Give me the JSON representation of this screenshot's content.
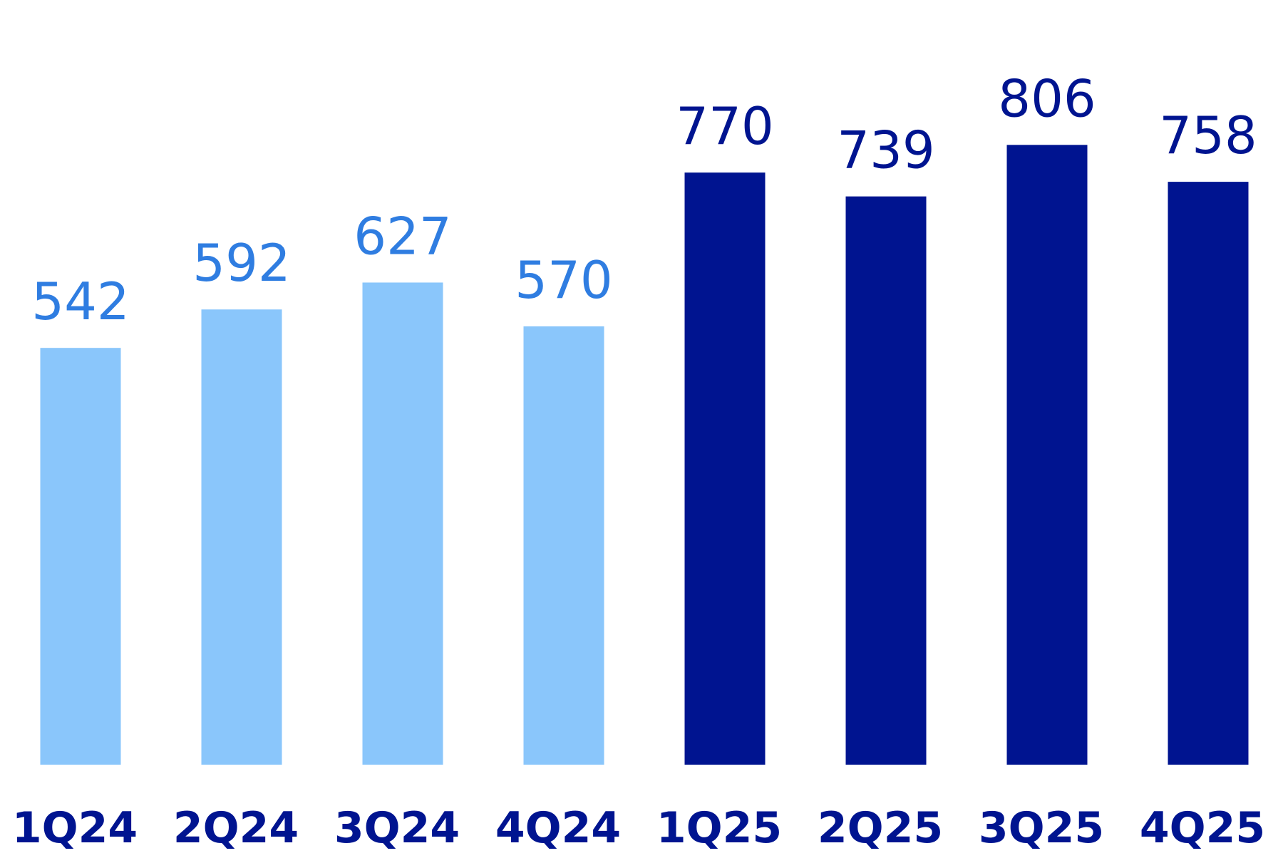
{
  "chart_data": {
    "type": "bar",
    "categories": [
      "1Q24",
      "2Q24",
      "3Q24",
      "4Q24",
      "1Q25",
      "2Q25",
      "3Q25",
      "4Q25"
    ],
    "values": [
      542,
      592,
      627,
      570,
      770,
      739,
      806,
      758
    ],
    "colors": [
      "#8ac6fb",
      "#8ac6fb",
      "#8ac6fb",
      "#8ac6fb",
      "#001490",
      "#001490",
      "#001490",
      "#001490"
    ],
    "value_label_colors": [
      "#2f7de1",
      "#2f7de1",
      "#2f7de1",
      "#2f7de1",
      "#001490",
      "#001490",
      "#001490",
      "#001490"
    ],
    "category_label_color": "#001490"
  }
}
